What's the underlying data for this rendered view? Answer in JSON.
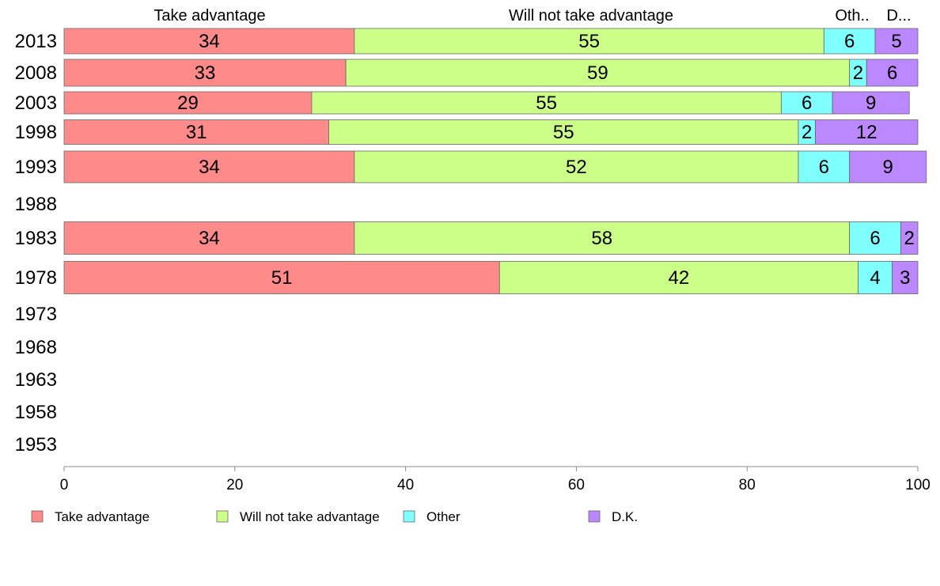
{
  "chart_data": {
    "type": "bar",
    "orientation": "horizontal",
    "stacked": true,
    "categories": [
      "2013",
      "2008",
      "2003",
      "1998",
      "1993",
      "1988",
      "1983",
      "1978",
      "1973",
      "1968",
      "1963",
      "1958",
      "1953"
    ],
    "series": [
      {
        "name": "Take advantage",
        "header": "Take advantage",
        "color": "#ff8a8a",
        "values": [
          34,
          33,
          29,
          31,
          34,
          null,
          34,
          51,
          null,
          null,
          null,
          null,
          null
        ]
      },
      {
        "name": "Will not take advantage",
        "header": "Will not take advantage",
        "color": "#ccff88",
        "values": [
          55,
          59,
          55,
          55,
          52,
          null,
          58,
          42,
          null,
          null,
          null,
          null,
          null
        ]
      },
      {
        "name": "Other",
        "header": "Oth..",
        "color": "#80ffff",
        "values": [
          6,
          2,
          6,
          2,
          6,
          null,
          6,
          4,
          null,
          null,
          null,
          null,
          null
        ]
      },
      {
        "name": "D.K.",
        "header": "D...",
        "color": "#bb88ff",
        "values": [
          5,
          6,
          9,
          12,
          9,
          null,
          2,
          3,
          null,
          null,
          null,
          null,
          null
        ]
      }
    ],
    "xlim": [
      0,
      100
    ],
    "xticks": [
      0,
      20,
      40,
      60,
      80,
      100
    ],
    "title": "",
    "xlabel": "",
    "ylabel": "",
    "grid": false,
    "legend_position": "bottom"
  }
}
